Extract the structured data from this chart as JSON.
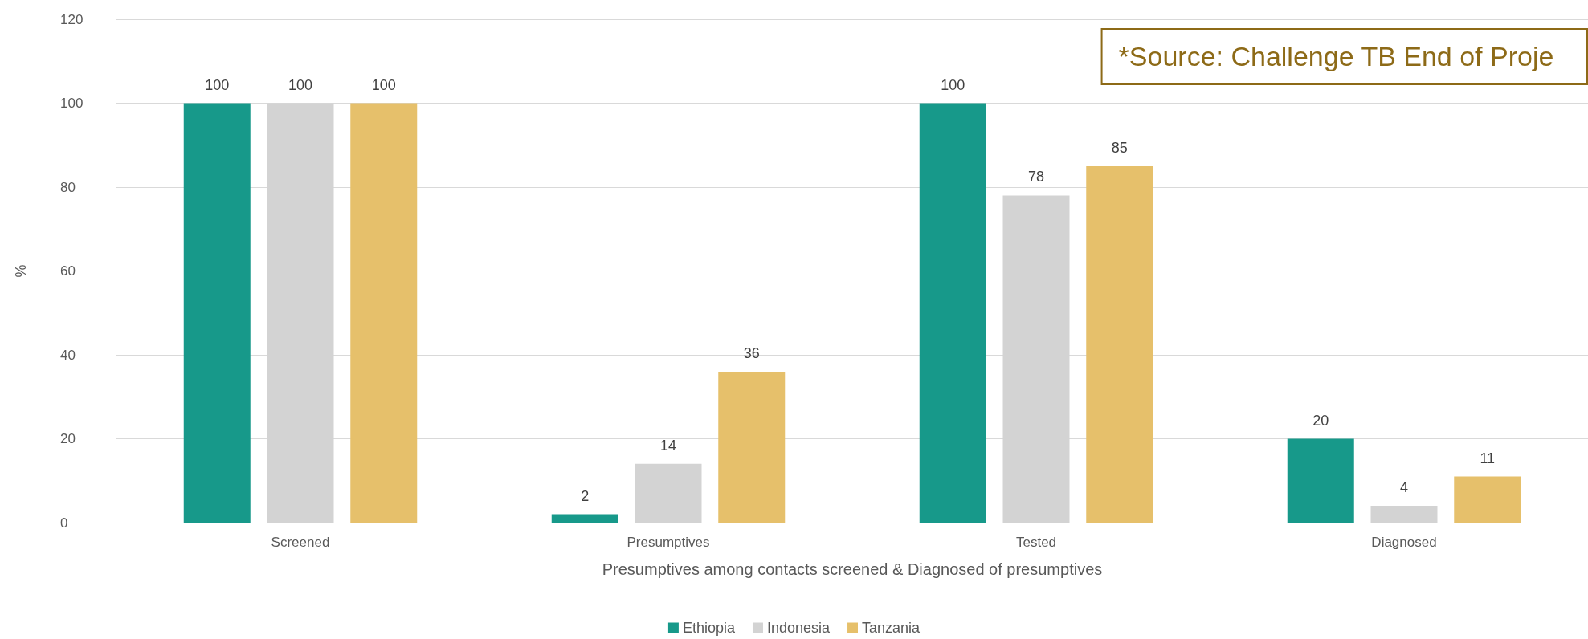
{
  "chart_data": {
    "type": "bar",
    "xlabel": "Presumptives among contacts screened & Diagnosed of presumptives",
    "ylabel": "%",
    "categories": [
      "Screened",
      "Presumptives",
      "Tested",
      "Diagnosed"
    ],
    "series": [
      {
        "name": "Ethiopia",
        "color": "#17998a",
        "values": [
          100,
          2,
          100,
          20
        ]
      },
      {
        "name": "Indonesia",
        "color": "#d3d3d3",
        "values": [
          100,
          14,
          78,
          4
        ]
      },
      {
        "name": "Tanzania",
        "color": "#e6c06b",
        "values": [
          100,
          36,
          85,
          11
        ]
      }
    ],
    "ylim": [
      0,
      120
    ],
    "yticks": [
      0,
      20,
      40,
      60,
      80,
      100,
      120
    ],
    "grid": "y",
    "legend": "bottom",
    "data_labels": true,
    "annotations": [
      "*Source: Challenge TB End of Proje"
    ]
  }
}
